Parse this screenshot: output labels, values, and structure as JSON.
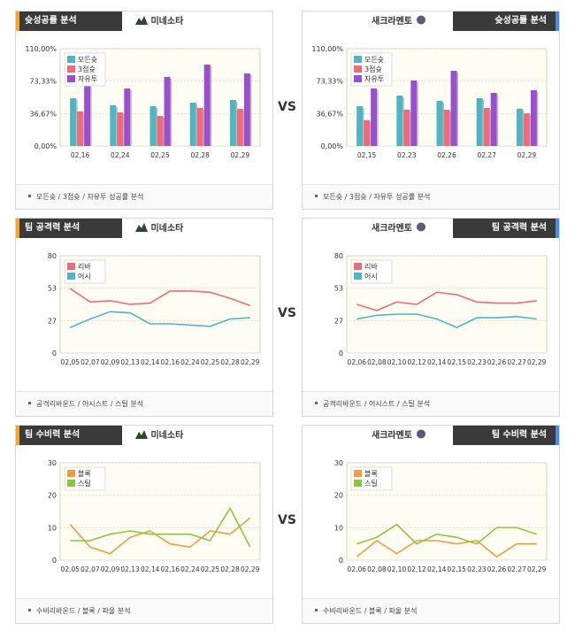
{
  "vs_label": "VS",
  "teams": {
    "left": "미네소타",
    "right": "새크라멘토"
  },
  "panels": [
    {
      "id": "p1",
      "header": "슛성공률 분석",
      "footer": "모든슛 / 3점슛 / 자유투 성공률 분석",
      "chart_data": {
        "type": "bar",
        "categories": [
          "02,16",
          "02,24",
          "02,25",
          "02,28",
          "02,29"
        ],
        "yticks": [
          "0,00%",
          "36,67%",
          "73,33%",
          "110,00%"
        ],
        "ylim": [
          0,
          110
        ],
        "series": [
          {
            "name": "모든슛",
            "color": "#4db6c4",
            "values": [
              54,
              46,
              45,
              49,
              52
            ]
          },
          {
            "name": "3점슛",
            "color": "#f06b7a",
            "values": [
              39,
              38,
              34,
              43,
              42
            ]
          },
          {
            "name": "자유투",
            "color": "#9b4fd0",
            "values": [
              100,
              65,
              78,
              92,
              82
            ]
          }
        ]
      }
    },
    {
      "id": "p2",
      "header": "슛성공률 분석",
      "footer": "모든슛 / 3점슛 / 자유투 성공률 분석",
      "chart_data": {
        "type": "bar",
        "categories": [
          "02,15",
          "02,23",
          "02,26",
          "02,27",
          "02,29"
        ],
        "yticks": [
          "0,00%",
          "36,67%",
          "73,33%",
          "110,00%"
        ],
        "ylim": [
          0,
          110
        ],
        "series": [
          {
            "name": "모든슛",
            "color": "#4db6c4",
            "values": [
              45,
              57,
              51,
              54,
              42
            ]
          },
          {
            "name": "3점슛",
            "color": "#f06b7a",
            "values": [
              29,
              41,
              41,
              43,
              37
            ]
          },
          {
            "name": "자유투",
            "color": "#9b4fd0",
            "values": [
              65,
              74,
              85,
              60,
              63
            ]
          }
        ]
      }
    },
    {
      "id": "p3",
      "header": "팀 공격력 분석",
      "footer": "공격리바운드 / 어시스트 / 스틸 분석",
      "chart_data": {
        "type": "line",
        "categories": [
          "02,05",
          "02,07",
          "02,09",
          "02,13",
          "02,14",
          "02,16",
          "02,24",
          "02,25",
          "02,28",
          "02,29"
        ],
        "yticks": [
          "0",
          "27",
          "53",
          "80"
        ],
        "ylim": [
          0,
          80
        ],
        "series": [
          {
            "name": "리바",
            "color": "#f06b7a",
            "values": [
              53,
              42,
              43,
              40,
              41,
              51,
              51,
              50,
              45,
              39
            ]
          },
          {
            "name": "어시",
            "color": "#4db6c4",
            "values": [
              21,
              28,
              34,
              33,
              24,
              24,
              23,
              22,
              28,
              29
            ]
          }
        ]
      }
    },
    {
      "id": "p4",
      "header": "팀 공격력 분석",
      "footer": "공격리바운드 / 어시스트 / 스틸 분석",
      "chart_data": {
        "type": "line",
        "categories": [
          "02,06",
          "02,08",
          "02,10",
          "02,12",
          "02,14",
          "02,15",
          "02,23",
          "02,26",
          "02,27",
          "02,29"
        ],
        "yticks": [
          "0",
          "27",
          "53",
          "80"
        ],
        "ylim": [
          0,
          80
        ],
        "series": [
          {
            "name": "리바",
            "color": "#f06b7a",
            "values": [
              40,
              35,
              42,
              40,
              50,
              48,
              42,
              41,
              41,
              43
            ]
          },
          {
            "name": "어시",
            "color": "#4db6c4",
            "values": [
              28,
              31,
              32,
              32,
              28,
              21,
              29,
              29,
              30,
              28
            ]
          }
        ]
      }
    },
    {
      "id": "p5",
      "header": "팀 수비력 분석",
      "footer": "수비리바운드 / 블록 / 파울 분석",
      "chart_data": {
        "type": "line",
        "categories": [
          "02,05",
          "02,07",
          "02,09",
          "02,13",
          "02,14",
          "02,16",
          "02,24",
          "02,25",
          "02,28",
          "02,29"
        ],
        "yticks": [
          "0",
          "10",
          "20",
          "30"
        ],
        "ylim": [
          0,
          30
        ],
        "series": [
          {
            "name": "블록",
            "color": "#f39c3c",
            "values": [
              11,
              4,
              2,
              7,
              9,
              5,
              4,
              9,
              8,
              13
            ]
          },
          {
            "name": "스틸",
            "color": "#8cc63f",
            "values": [
              6,
              6,
              8,
              9,
              8,
              8,
              8,
              6,
              16,
              4
            ]
          }
        ]
      }
    },
    {
      "id": "p6",
      "header": "팀 수비력 분석",
      "footer": "수비리바운드 / 블록 / 파울 분석",
      "chart_data": {
        "type": "line",
        "categories": [
          "02,06",
          "02,08",
          "02,10",
          "02,12",
          "02,14",
          "02,15",
          "02,23",
          "02,26",
          "02,27",
          "02,29"
        ],
        "yticks": [
          "0",
          "10",
          "20",
          "30"
        ],
        "ylim": [
          0,
          30
        ],
        "series": [
          {
            "name": "블록",
            "color": "#f39c3c",
            "values": [
              1,
              6,
              2,
              6,
              6,
              5,
              6,
              1,
              5,
              5
            ]
          },
          {
            "name": "스틸",
            "color": "#8cc63f",
            "values": [
              5,
              7,
              11,
              5,
              8,
              7,
              5,
              10,
              10,
              8
            ]
          }
        ]
      }
    }
  ]
}
